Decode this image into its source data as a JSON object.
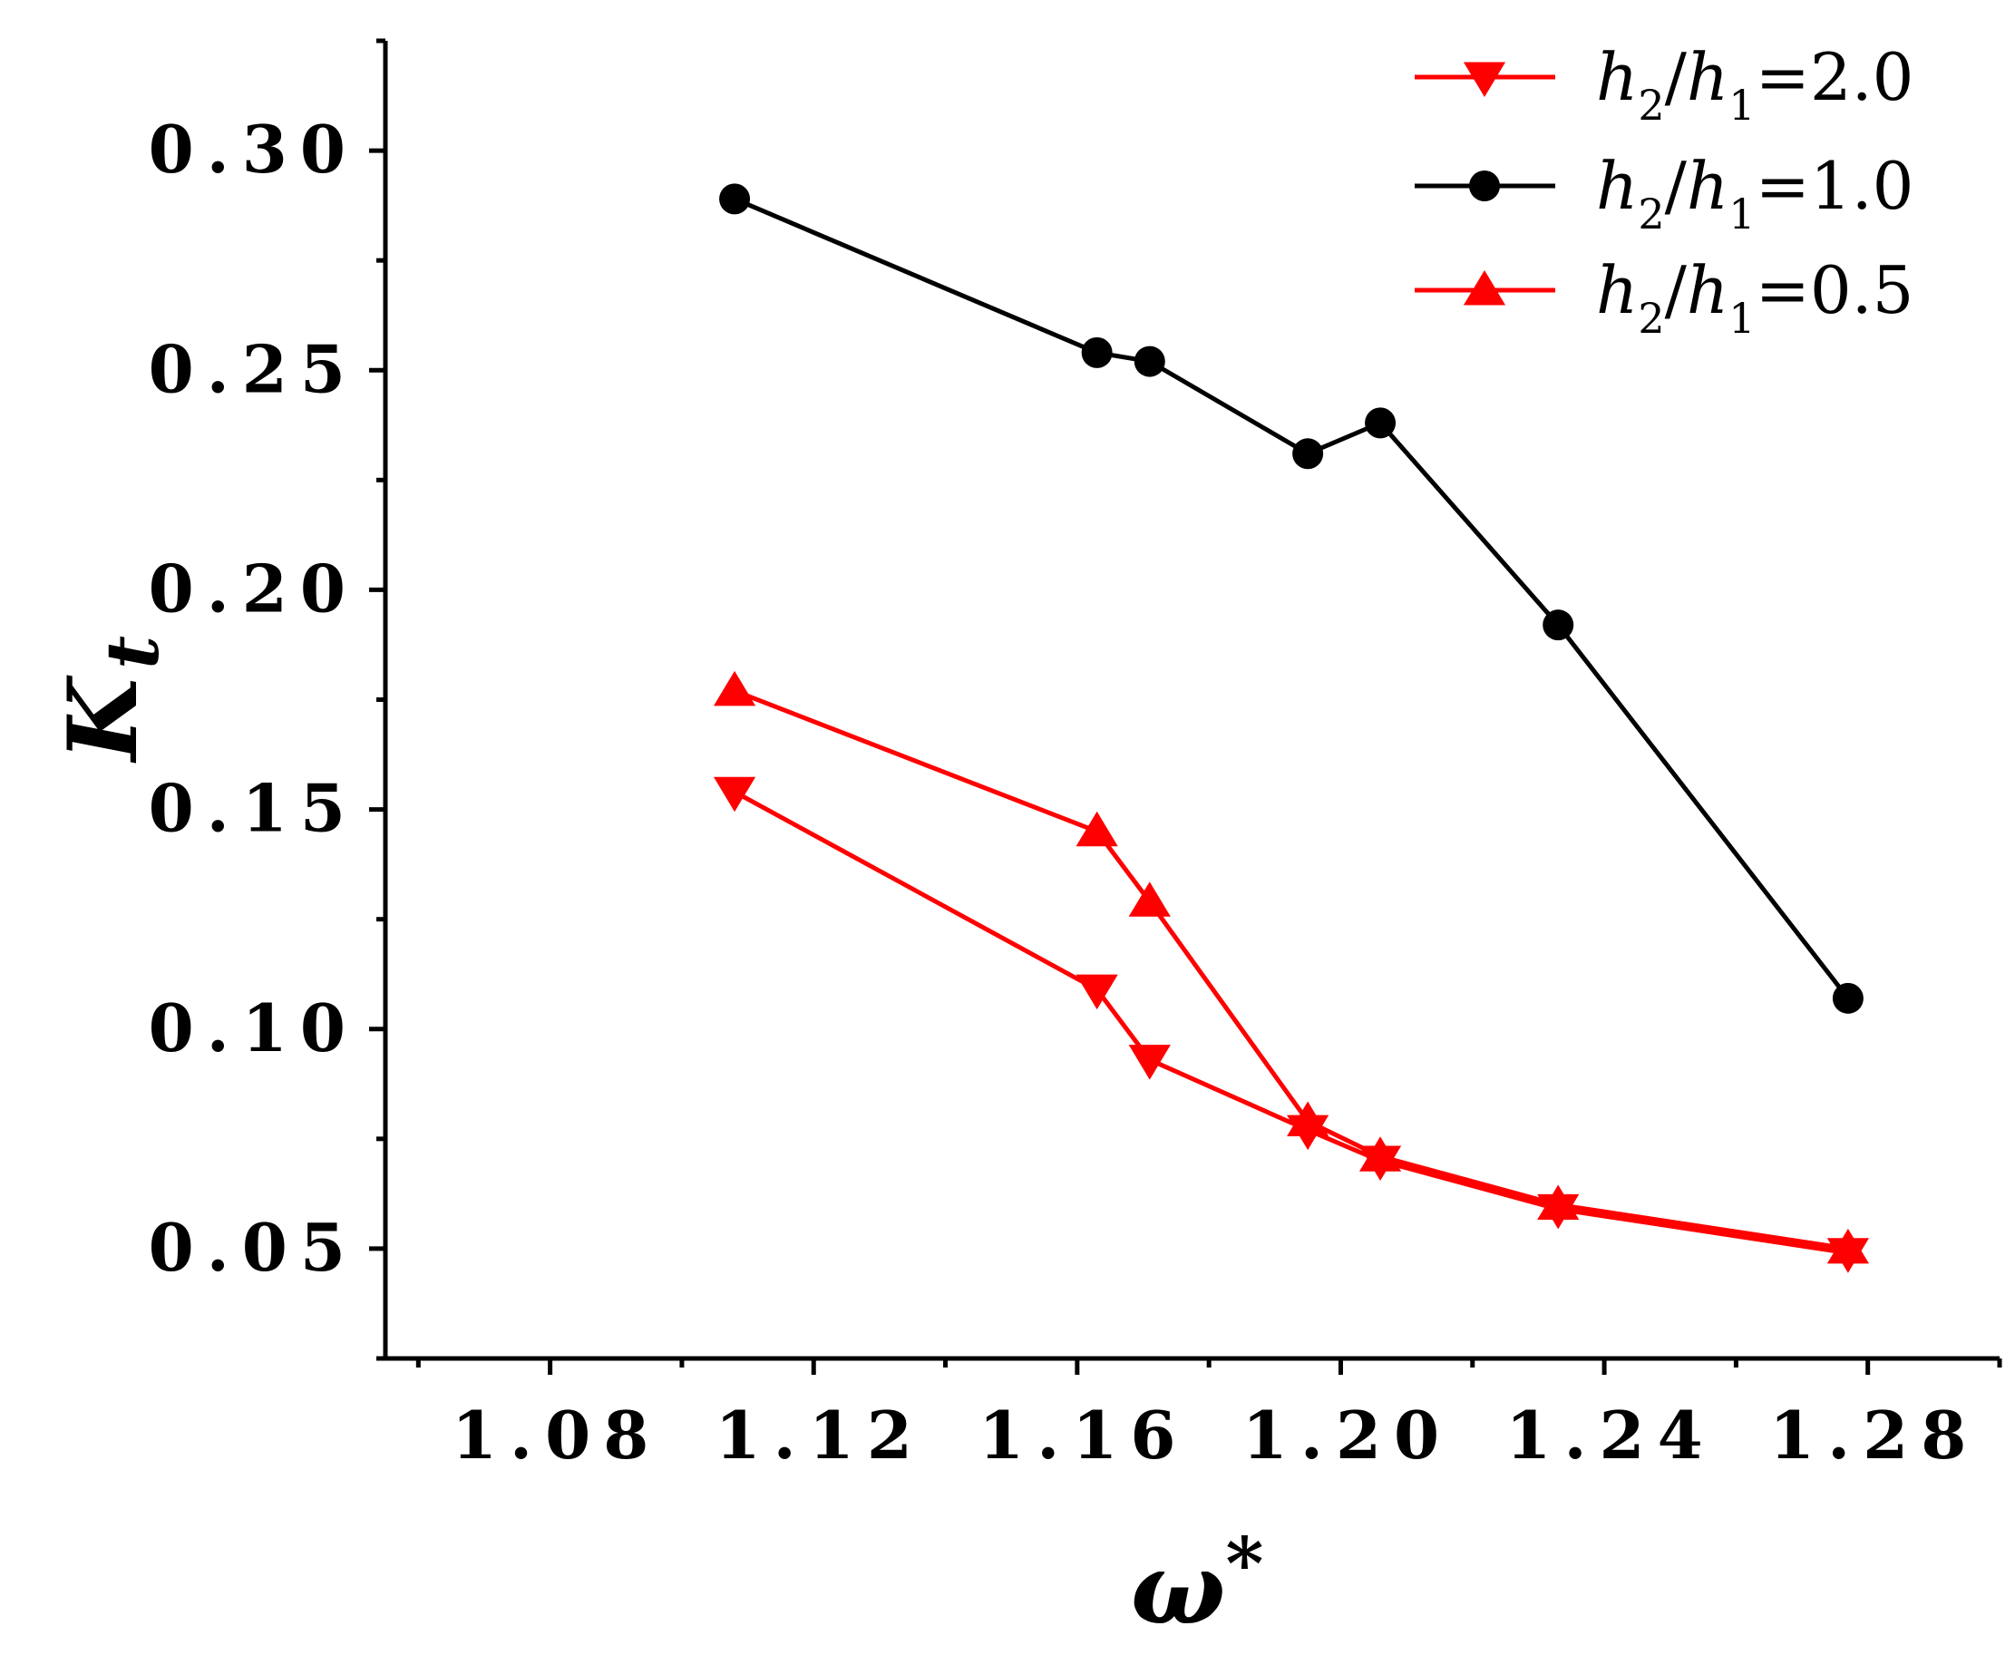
{
  "chart_data": {
    "type": "line",
    "title": "",
    "xlabel": "ω*",
    "ylabel": "K_t",
    "xlabel_parts": {
      "base": "ω",
      "sup": "*"
    },
    "ylabel_parts": {
      "base": "K",
      "sub": "t"
    },
    "xlim": [
      1.055,
      1.3
    ],
    "ylim": [
      0.025,
      0.325
    ],
    "x_ticks": [
      1.08,
      1.12,
      1.16,
      1.2,
      1.24,
      1.28
    ],
    "x_tick_labels": [
      "1.08",
      "1.12",
      "1.16",
      "1.20",
      "1.24",
      "1.28"
    ],
    "y_ticks": [
      0.05,
      0.1,
      0.15,
      0.2,
      0.25,
      0.3
    ],
    "y_tick_labels": [
      "0.05",
      "0.10",
      "0.15",
      "0.20",
      "0.25",
      "0.30"
    ],
    "grid": false,
    "legend_position": "top-right",
    "series": [
      {
        "name": "h2/h1=2.0",
        "legend": {
          "a": "h",
          "a_sub": "2",
          "slash": "/",
          "b": "h",
          "b_sub": "1",
          "eq": "=2.0"
        },
        "color": "#ff0000",
        "marker": "triangle-down",
        "x": [
          1.108,
          1.163,
          1.171,
          1.195,
          1.206,
          1.233,
          1.277
        ],
        "y": [
          0.154,
          0.109,
          0.093,
          0.077,
          0.07,
          0.059,
          0.049
        ]
      },
      {
        "name": "h2/h1=1.0",
        "legend": {
          "a": "h",
          "a_sub": "2",
          "slash": "/",
          "b": "h",
          "b_sub": "1",
          "eq": "=1.0"
        },
        "color": "#000000",
        "marker": "circle",
        "x": [
          1.108,
          1.163,
          1.171,
          1.195,
          1.206,
          1.233,
          1.277
        ],
        "y": [
          0.289,
          0.254,
          0.252,
          0.231,
          0.238,
          0.192,
          0.107
        ]
      },
      {
        "name": "h2/h1=0.5",
        "legend": {
          "a": "h",
          "a_sub": "2",
          "slash": "/",
          "b": "h",
          "b_sub": "1",
          "eq": "=0.5"
        },
        "color": "#ff0000",
        "marker": "triangle-up",
        "x": [
          1.108,
          1.163,
          1.171,
          1.195,
          1.206,
          1.233,
          1.277
        ],
        "y": [
          0.177,
          0.145,
          0.129,
          0.079,
          0.071,
          0.06,
          0.05
        ]
      }
    ]
  }
}
